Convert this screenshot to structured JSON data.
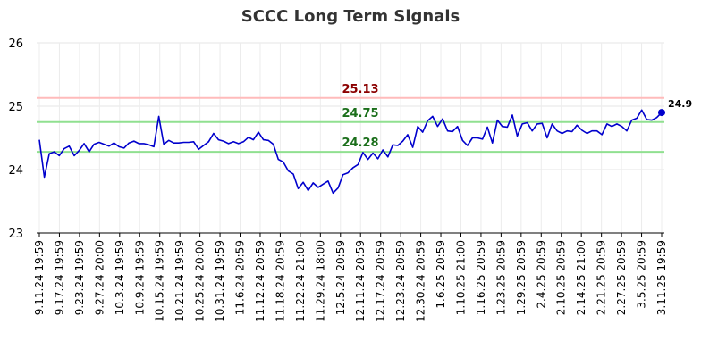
{
  "chart_data": {
    "type": "line",
    "title": "SCCC Long Term Signals",
    "xlabel": "",
    "ylabel": "",
    "ylim": [
      23,
      26
    ],
    "y_ticks": [
      "23",
      "24",
      "25",
      "26"
    ],
    "x_tick_labels": [
      "9.11.24 19:59",
      "9.17.24 19:59",
      "9.23.24 19:59",
      "9.27.24 20:00",
      "10.3.24 19:59",
      "10.9.24 19:59",
      "10.15.24 19:59",
      "10.21.24 19:59",
      "10.25.24 20:00",
      "10.31.24 19:59",
      "11.6.24 20:59",
      "11.12.24 20:59",
      "11.18.24 20:59",
      "11.22.24 21:00",
      "11.29.24 18:00",
      "12.5.24 20:59",
      "12.11.24 20:59",
      "12.17.24 20:59",
      "12.23.24 20:59",
      "12.30.24 20:59",
      "1.6.25 20:59",
      "1.10.25 21:00",
      "1.16.25 20:59",
      "1.23.25 20:59",
      "1.29.25 20:59",
      "2.4.25 20:59",
      "2.10.25 20:59",
      "2.14.25 21:00",
      "2.21.25 20:59",
      "2.27.25 20:59",
      "3.5.25 20:59",
      "3.11.25 19:59"
    ],
    "grid": true,
    "series": [
      {
        "color": "#0000cc",
        "values": [
          24.47,
          23.88,
          24.25,
          24.28,
          24.22,
          24.33,
          24.37,
          24.22,
          24.3,
          24.41,
          24.28,
          24.4,
          24.43,
          24.4,
          24.37,
          24.42,
          24.36,
          24.34,
          24.42,
          24.45,
          24.41,
          24.41,
          24.39,
          24.36,
          24.84,
          24.4,
          24.46,
          24.42,
          24.42,
          24.43,
          24.43,
          24.44,
          24.32,
          24.38,
          24.44,
          24.57,
          24.47,
          24.45,
          24.41,
          24.44,
          24.41,
          24.44,
          24.51,
          24.47,
          24.59,
          24.47,
          24.46,
          24.4,
          24.16,
          24.12,
          23.98,
          23.93,
          23.7,
          23.8,
          23.67,
          23.79,
          23.72,
          23.77,
          23.82,
          23.63,
          23.71,
          23.92,
          23.95,
          24.03,
          24.08,
          24.27,
          24.16,
          24.26,
          24.17,
          24.31,
          24.2,
          24.39,
          24.38,
          24.45,
          24.55,
          24.35,
          24.68,
          24.59,
          24.77,
          24.84,
          24.68,
          24.8,
          24.61,
          24.6,
          24.68,
          24.46,
          24.38,
          24.5,
          24.5,
          24.48,
          24.67,
          24.42,
          24.78,
          24.68,
          24.67,
          24.86,
          24.53,
          24.72,
          24.74,
          24.61,
          24.72,
          24.73,
          24.5,
          24.72,
          24.61,
          24.57,
          24.61,
          24.6,
          24.7,
          24.62,
          24.57,
          24.61,
          24.61,
          24.55,
          24.72,
          24.68,
          24.72,
          24.68,
          24.61,
          24.78,
          24.81,
          24.94,
          24.79,
          24.78,
          24.82,
          24.9
        ]
      }
    ],
    "last_point_label": "24.9",
    "reference_lines": [
      {
        "value": 25.13,
        "label": "25.13",
        "line_color": "#ffbbbb",
        "label_color": "#8b0000"
      },
      {
        "value": 24.75,
        "label": "24.75",
        "line_color": "#90e090",
        "label_color": "#1a6e1a"
      },
      {
        "value": 24.28,
        "label": "24.28",
        "line_color": "#90e090",
        "label_color": "#1a6e1a"
      }
    ]
  }
}
